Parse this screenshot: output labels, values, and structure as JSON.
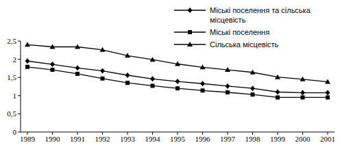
{
  "chart_data": {
    "type": "line",
    "categories": [
      "1989",
      "1990",
      "1991",
      "1992",
      "1993",
      "1994",
      "1995",
      "1996",
      "1997",
      "1998",
      "1999",
      "2000",
      "2001"
    ],
    "series": [
      {
        "name": "Міські поселення та сільська місцевість",
        "color": "#000000",
        "marker": "diamond",
        "values": [
          1.95,
          1.86,
          1.76,
          1.68,
          1.56,
          1.46,
          1.39,
          1.33,
          1.26,
          1.2,
          1.1,
          1.08,
          1.08
        ]
      },
      {
        "name": "Міські поселення",
        "color": "#000000",
        "marker": "square",
        "values": [
          1.79,
          1.71,
          1.6,
          1.47,
          1.35,
          1.27,
          1.2,
          1.14,
          1.09,
          1.03,
          0.95,
          0.95,
          0.95
        ]
      },
      {
        "name": "Сільська місцевість",
        "color": "#000000",
        "marker": "triangle",
        "values": [
          2.4,
          2.34,
          2.34,
          2.26,
          2.1,
          1.99,
          1.87,
          1.78,
          1.71,
          1.64,
          1.51,
          1.45,
          1.38
        ]
      }
    ],
    "ylim": [
      0,
      2.5
    ],
    "yticks": [
      0,
      {
        "value": 0.5,
        "label": "0,5"
      },
      1,
      {
        "value": 1.5,
        "label": "1,5"
      },
      2,
      {
        "value": 2.5,
        "label": "2,5"
      }
    ],
    "grid": false,
    "legend": "top-right"
  }
}
